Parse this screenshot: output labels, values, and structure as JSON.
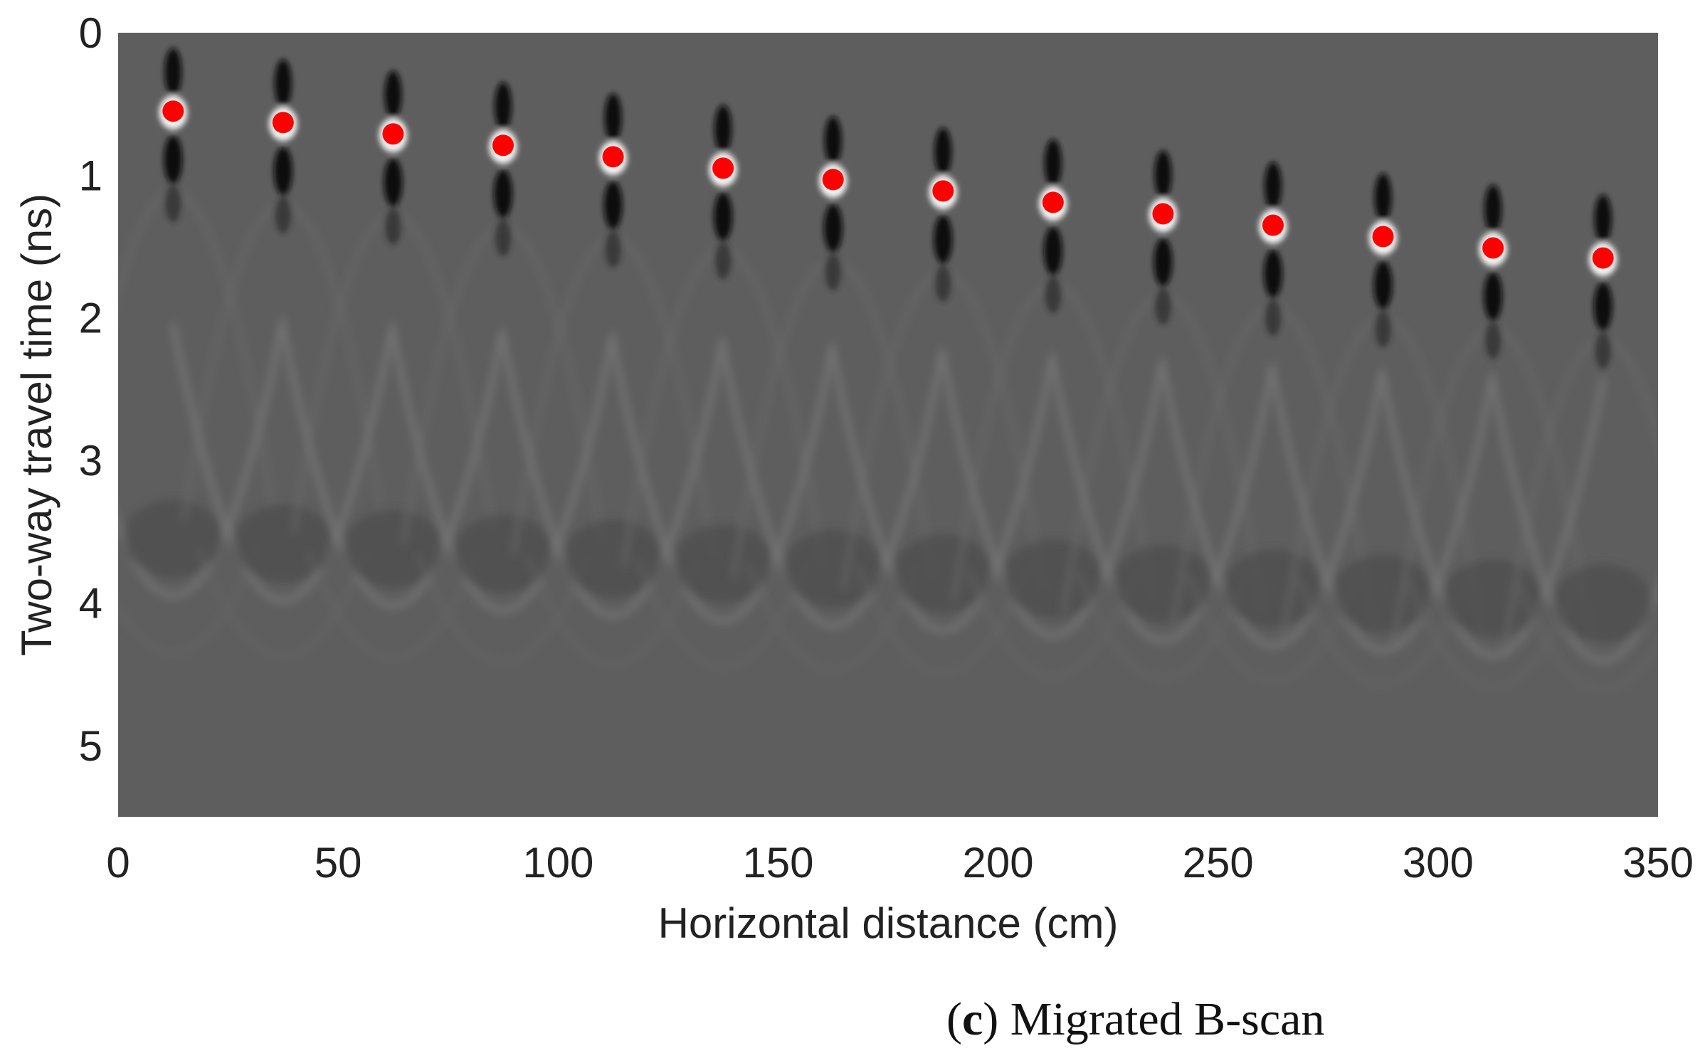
{
  "chart_data": {
    "type": "scatter",
    "title": "",
    "xlabel": "Horizontal distance (cm)",
    "ylabel": "Two-way travel time (ns)",
    "xlim": [
      0,
      350
    ],
    "ylim": [
      0,
      5.5
    ],
    "y_reversed": true,
    "grid": false,
    "xticks": [
      "0",
      "50",
      "100",
      "150",
      "200",
      "250",
      "300",
      "350"
    ],
    "yticks": [
      "0",
      "1",
      "2",
      "3",
      "4",
      "5"
    ],
    "background": "grayscale B-scan image with hyperbolic reflections",
    "series": [
      {
        "marker_color": "#ff0000",
        "points": [
          {
            "x": 12.5,
            "y": 0.55
          },
          {
            "x": 37.5,
            "y": 0.63
          },
          {
            "x": 62.5,
            "y": 0.71
          },
          {
            "x": 87.5,
            "y": 0.79
          },
          {
            "x": 112.5,
            "y": 0.87
          },
          {
            "x": 137.5,
            "y": 0.95
          },
          {
            "x": 162.5,
            "y": 1.03
          },
          {
            "x": 187.5,
            "y": 1.11
          },
          {
            "x": 212.5,
            "y": 1.19
          },
          {
            "x": 237.5,
            "y": 1.27
          },
          {
            "x": 262.5,
            "y": 1.35
          },
          {
            "x": 287.5,
            "y": 1.43
          },
          {
            "x": 312.5,
            "y": 1.51
          },
          {
            "x": 337.5,
            "y": 1.58
          }
        ]
      }
    ]
  },
  "caption": {
    "letter": "c",
    "open_paren": "(",
    "close_text": ") Migrated B-scan"
  },
  "colors": {
    "background_gray": "#5e5e5e",
    "marker": "#ff0000",
    "dark_lobe": "#111111",
    "bright_lobe": "#f2f2f2"
  }
}
